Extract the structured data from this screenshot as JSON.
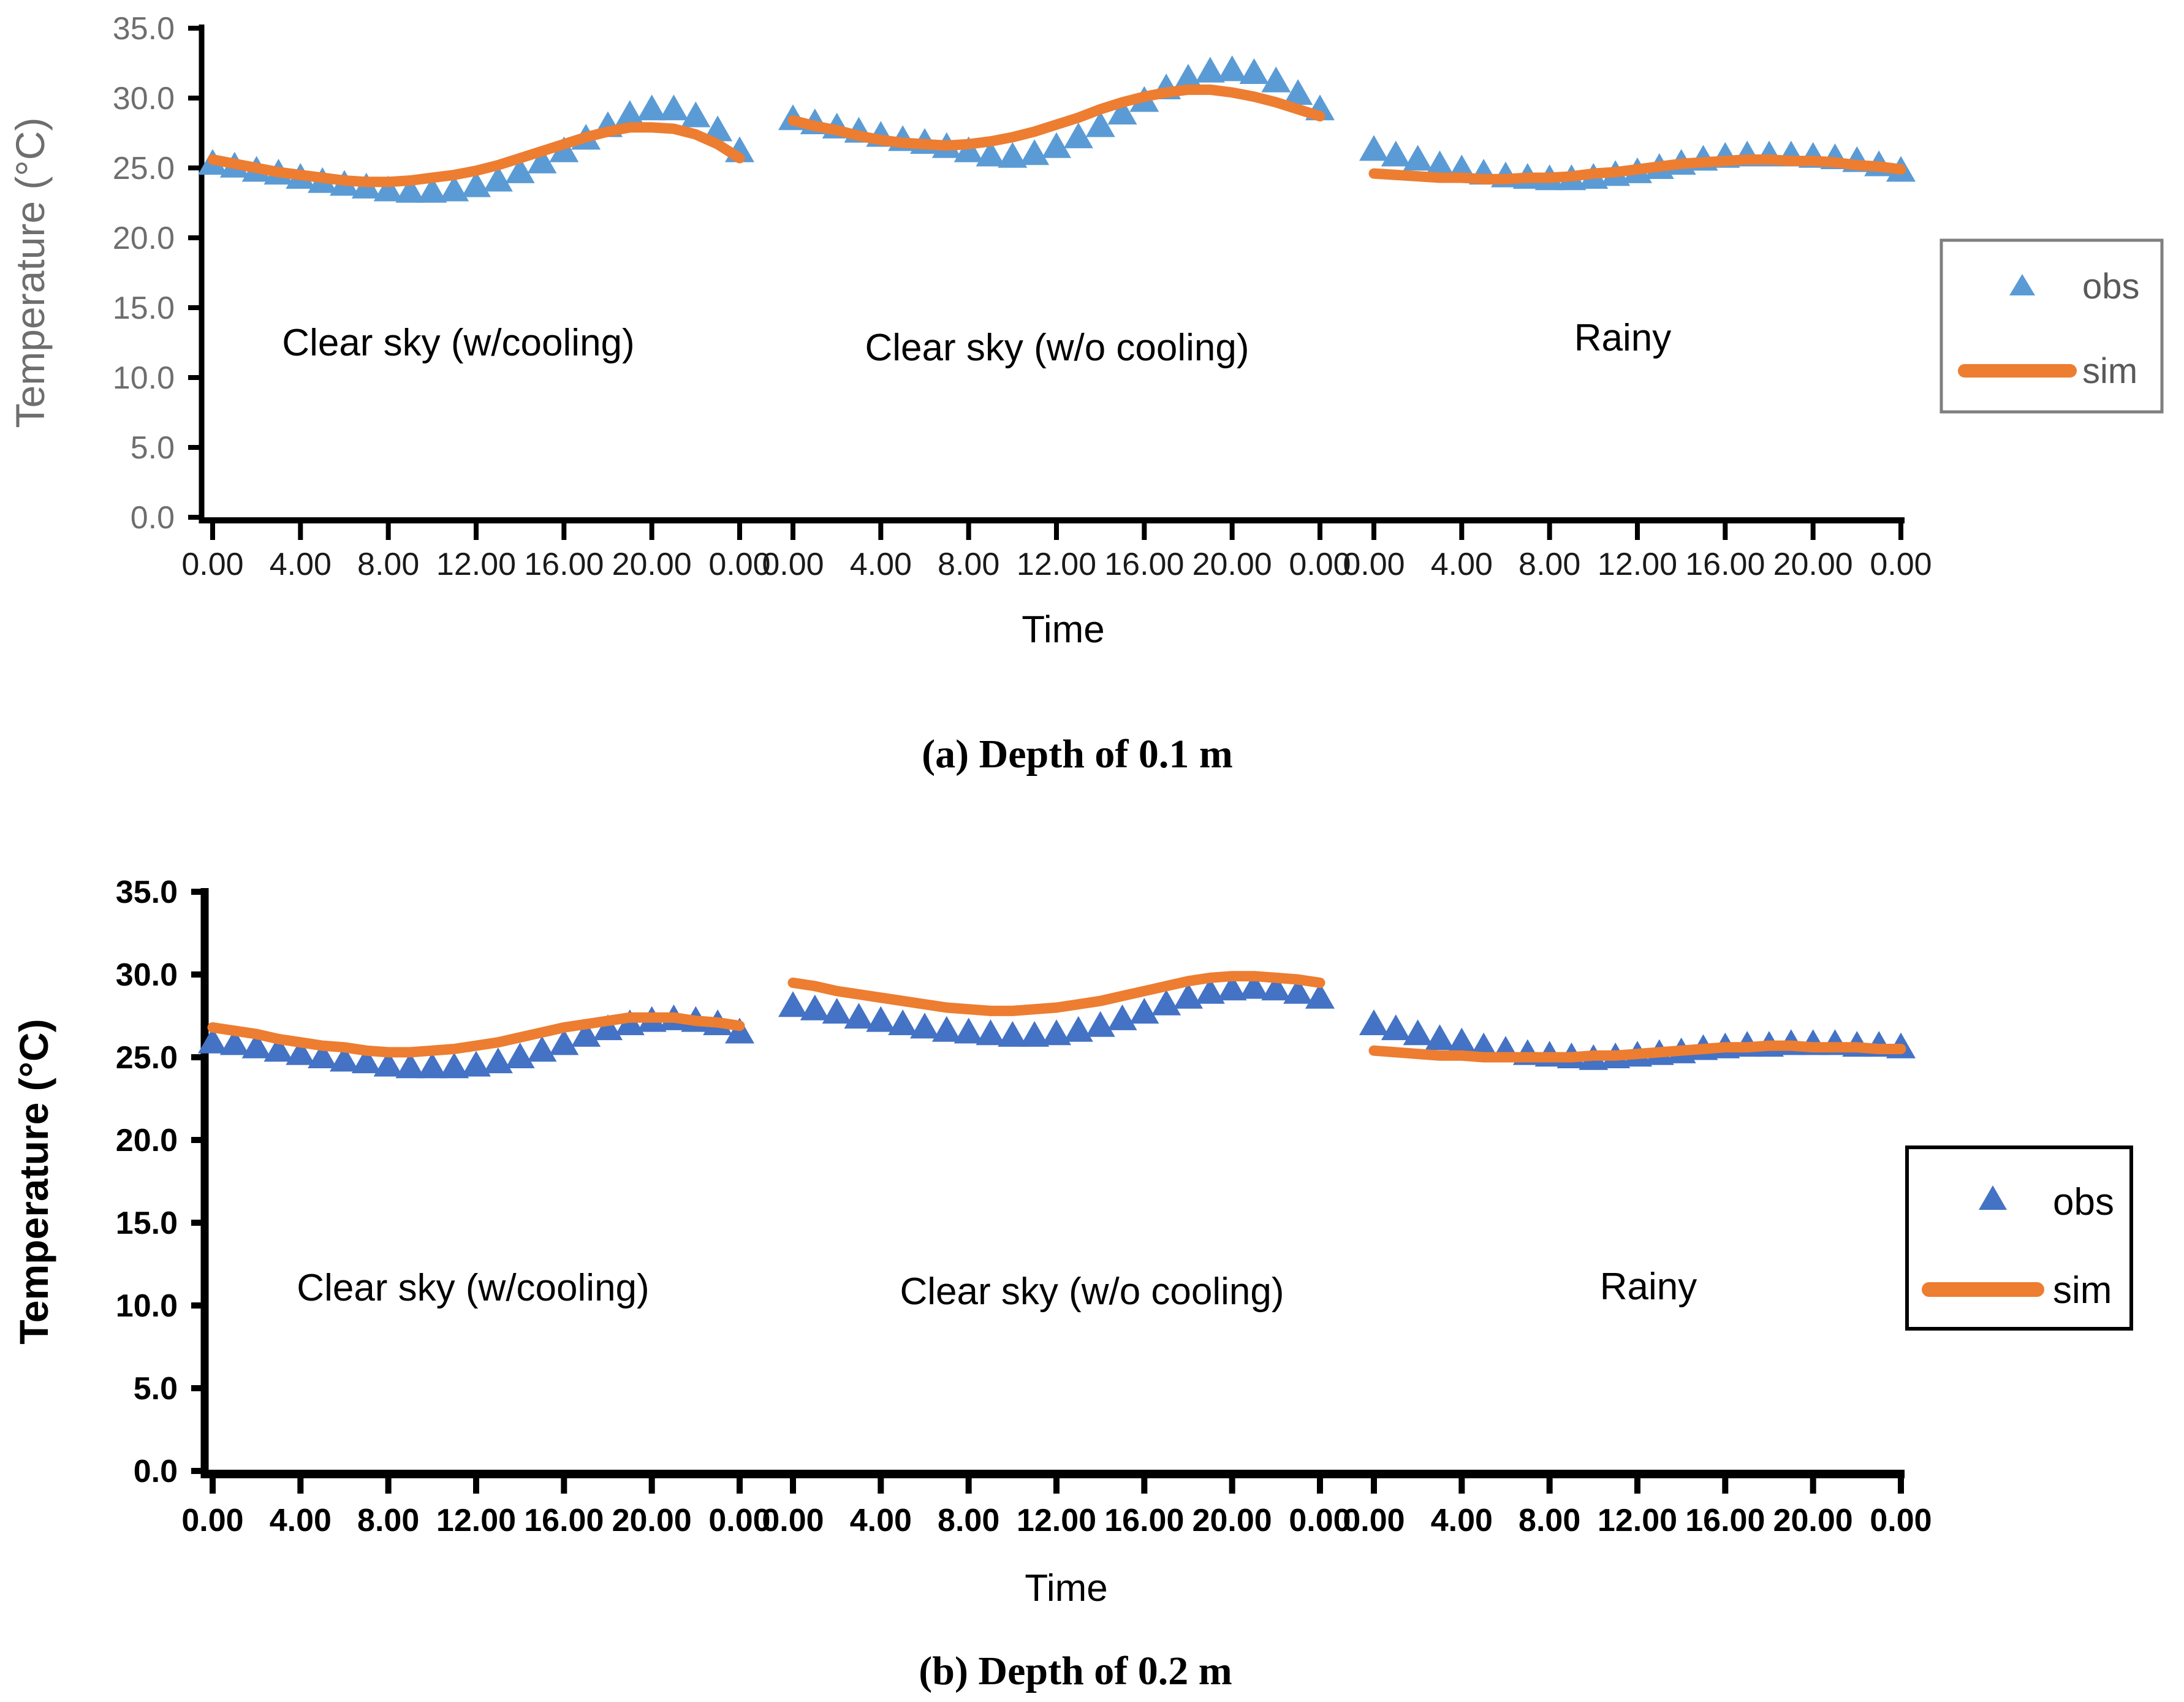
{
  "figure": {
    "caption_a": "(a) Depth of 0.1 m",
    "caption_b": "(b) Depth of 0.2 m",
    "x_axis_title": "Time",
    "y_axis_title": "Temperature (°C)"
  },
  "colors": {
    "sim_line": "#ED7D31",
    "obs_marker_panel_a": "#5B9BD5",
    "obs_marker_panel_b": "#4472C4",
    "panel_a_y_text": "#6E6E6E",
    "panel_a_x_text": "#1A1A1A",
    "panel_b_text": "#000000",
    "panel_a_legend_border": "#7F7F7F",
    "panel_b_legend_border": "#000000",
    "axis_line": "#000000"
  },
  "chart_data": [
    {
      "type": "line",
      "title": "(a) Depth of 0.1 m",
      "xlabel": "Time",
      "ylabel": "Temperature (°C)",
      "ylim": [
        0.0,
        35.0
      ],
      "grid": false,
      "legend_position": "right-inside-top",
      "legend": {
        "obs": "obs",
        "sim": "sim"
      },
      "series_styles": {
        "obs": "scatter-triangle",
        "sim": "thick-line"
      },
      "y_ticks": [
        "35.0",
        "30.0",
        "25.0",
        "20.0",
        "15.0",
        "10.0",
        "5.0",
        "0.0"
      ],
      "x_tick_labels_per_segment": [
        "0.00",
        "4.00",
        "8.00",
        "12.00",
        "16.00",
        "20.00",
        "0.00"
      ],
      "hours": [
        0,
        1,
        2,
        3,
        4,
        5,
        6,
        7,
        8,
        9,
        10,
        11,
        12,
        13,
        14,
        15,
        16,
        17,
        18,
        19,
        20,
        21,
        22,
        23,
        24
      ],
      "segments": [
        {
          "label": "Clear sky (w/cooling)",
          "obs": [
            25.3,
            25.1,
            24.8,
            24.6,
            24.3,
            24.0,
            23.8,
            23.6,
            23.4,
            23.3,
            23.3,
            23.4,
            23.7,
            24.1,
            24.7,
            25.4,
            26.2,
            27.1,
            28.0,
            28.8,
            29.2,
            29.2,
            28.7,
            27.7,
            26.2
          ],
          "sim": [
            25.6,
            25.3,
            25.0,
            24.7,
            24.5,
            24.3,
            24.1,
            24.0,
            24.0,
            24.1,
            24.3,
            24.5,
            24.8,
            25.2,
            25.7,
            26.2,
            26.7,
            27.2,
            27.6,
            27.9,
            27.9,
            27.8,
            27.4,
            26.7,
            25.7
          ]
        },
        {
          "label": "Clear sky (w/o cooling)",
          "obs": [
            28.5,
            28.2,
            27.9,
            27.6,
            27.3,
            27.0,
            26.8,
            26.5,
            26.2,
            25.9,
            25.8,
            26.0,
            26.5,
            27.2,
            28.0,
            28.9,
            29.8,
            30.7,
            31.4,
            31.9,
            32.0,
            31.8,
            31.2,
            30.3,
            29.2
          ],
          "sim": [
            28.4,
            28.0,
            27.7,
            27.3,
            27.0,
            26.8,
            26.7,
            26.6,
            26.7,
            26.9,
            27.2,
            27.6,
            28.1,
            28.6,
            29.2,
            29.7,
            30.1,
            30.4,
            30.6,
            30.6,
            30.4,
            30.1,
            29.7,
            29.2,
            28.7
          ]
        },
        {
          "label": "Rainy",
          "obs": [
            26.3,
            25.9,
            25.6,
            25.2,
            24.9,
            24.6,
            24.4,
            24.3,
            24.2,
            24.2,
            24.3,
            24.5,
            24.7,
            25.0,
            25.3,
            25.6,
            25.8,
            25.9,
            25.9,
            25.9,
            25.8,
            25.7,
            25.5,
            25.2,
            24.8
          ],
          "sim": [
            24.6,
            24.5,
            24.4,
            24.3,
            24.3,
            24.2,
            24.2,
            24.3,
            24.3,
            24.4,
            24.6,
            24.7,
            24.9,
            25.1,
            25.3,
            25.4,
            25.5,
            25.6,
            25.6,
            25.5,
            25.5,
            25.4,
            25.2,
            25.1,
            24.9
          ]
        }
      ]
    },
    {
      "type": "line",
      "title": "(b) Depth of 0.2 m",
      "xlabel": "Time",
      "ylabel": "Temperature (°C)",
      "ylim": [
        0.0,
        35.0
      ],
      "grid": false,
      "legend_position": "right-inside-middle",
      "legend": {
        "obs": "obs",
        "sim": "sim"
      },
      "series_styles": {
        "obs": "scatter-triangle",
        "sim": "thick-line"
      },
      "y_ticks": [
        "35.0",
        "30.0",
        "25.0",
        "20.0",
        "15.0",
        "10.0",
        "5.0",
        "0.0"
      ],
      "x_tick_labels_per_segment": [
        "0.00",
        "4.00",
        "8.00",
        "12.00",
        "16.00",
        "20.00",
        "0.00"
      ],
      "hours": [
        0,
        1,
        2,
        3,
        4,
        5,
        6,
        7,
        8,
        9,
        10,
        11,
        12,
        13,
        14,
        15,
        16,
        17,
        18,
        19,
        20,
        21,
        22,
        23,
        24
      ],
      "segments": [
        {
          "label": "Clear sky (w/cooling)",
          "obs": [
            25.9,
            25.8,
            25.6,
            25.4,
            25.2,
            25.0,
            24.8,
            24.7,
            24.5,
            24.4,
            24.4,
            24.4,
            24.5,
            24.7,
            25.0,
            25.4,
            25.8,
            26.3,
            26.7,
            27.0,
            27.2,
            27.3,
            27.2,
            27.0,
            26.5
          ],
          "sim": [
            26.8,
            26.6,
            26.4,
            26.1,
            25.9,
            25.7,
            25.6,
            25.4,
            25.3,
            25.3,
            25.4,
            25.5,
            25.7,
            25.9,
            26.2,
            26.5,
            26.8,
            27.0,
            27.2,
            27.4,
            27.4,
            27.4,
            27.2,
            27.1,
            26.9
          ]
        },
        {
          "label": "Clear sky (w/o cooling)",
          "obs": [
            28.1,
            27.9,
            27.7,
            27.4,
            27.2,
            27.0,
            26.8,
            26.6,
            26.5,
            26.4,
            26.3,
            26.3,
            26.4,
            26.6,
            26.9,
            27.3,
            27.7,
            28.2,
            28.6,
            28.9,
            29.1,
            29.2,
            29.1,
            28.9,
            28.6
          ],
          "sim": [
            29.5,
            29.3,
            29.0,
            28.8,
            28.6,
            28.4,
            28.2,
            28.0,
            27.9,
            27.8,
            27.8,
            27.9,
            28.0,
            28.2,
            28.4,
            28.7,
            29.0,
            29.3,
            29.6,
            29.8,
            29.9,
            29.9,
            29.8,
            29.7,
            29.5
          ]
        },
        {
          "label": "Rainy",
          "obs": [
            27.0,
            26.7,
            26.4,
            26.1,
            25.9,
            25.6,
            25.4,
            25.2,
            25.1,
            25.0,
            24.9,
            25.0,
            25.1,
            25.2,
            25.3,
            25.5,
            25.6,
            25.7,
            25.7,
            25.8,
            25.8,
            25.8,
            25.7,
            25.7,
            25.6
          ],
          "sim": [
            25.4,
            25.3,
            25.2,
            25.1,
            25.1,
            25.0,
            25.0,
            25.0,
            25.0,
            25.0,
            25.1,
            25.1,
            25.2,
            25.3,
            25.4,
            25.5,
            25.6,
            25.6,
            25.7,
            25.7,
            25.6,
            25.6,
            25.6,
            25.5,
            25.5
          ]
        }
      ]
    }
  ]
}
